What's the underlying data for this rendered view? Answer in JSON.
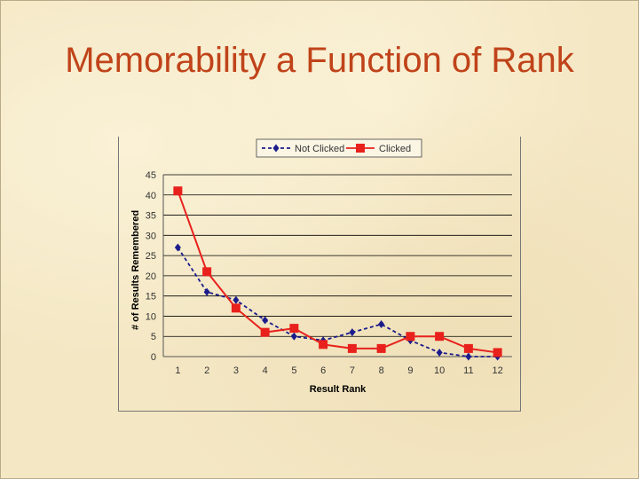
{
  "slide": {
    "title": "Memorability a Function of Rank"
  },
  "colors": {
    "title": "#c0431a",
    "not_clicked": "#1c1c8c",
    "clicked": "#e8211c",
    "grid": "#000000"
  },
  "chart_data": {
    "type": "line",
    "x": [
      1,
      2,
      3,
      4,
      5,
      6,
      7,
      8,
      9,
      10,
      11,
      12
    ],
    "categories": [
      "1",
      "2",
      "3",
      "4",
      "5",
      "6",
      "7",
      "8",
      "9",
      "10",
      "11",
      "12"
    ],
    "series": [
      {
        "name": "Not Clicked",
        "values": [
          27,
          16,
          14,
          9,
          5,
          4,
          6,
          8,
          4,
          1,
          0,
          0
        ],
        "line_style": "dashed",
        "marker": "diamond",
        "color": "#1c1c8c"
      },
      {
        "name": "Clicked",
        "values": [
          41,
          21,
          12,
          6,
          7,
          3,
          2,
          2,
          5,
          5,
          2,
          1
        ],
        "line_style": "solid",
        "marker": "square",
        "color": "#e8211c"
      }
    ],
    "xlabel": "Result Rank",
    "ylabel": "# of Results Remembered",
    "ylim": [
      0,
      45
    ],
    "yticks": [
      0,
      5,
      10,
      15,
      20,
      25,
      30,
      35,
      40,
      45
    ],
    "grid": true,
    "legend": "top"
  }
}
